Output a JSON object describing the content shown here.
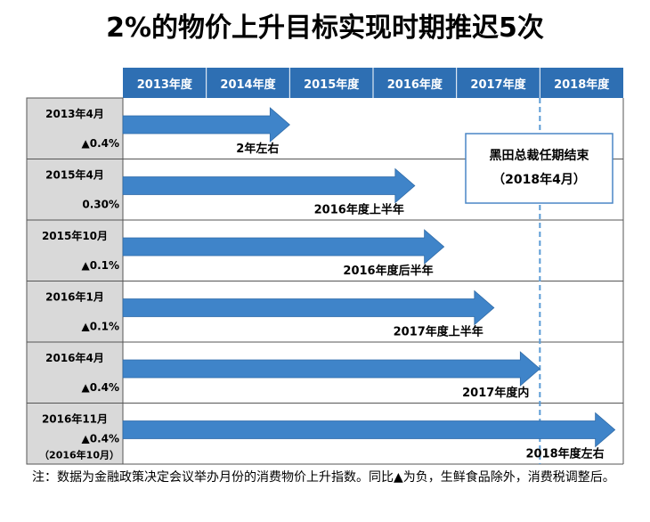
{
  "title": "2%的物价上升目标实现时期推迟5次",
  "chart_data": {
    "type": "timeline",
    "periods": [
      "2013年度",
      "2014年度",
      "2015年度",
      "2016年度",
      "2017年度",
      "2018年度"
    ],
    "rows": [
      {
        "date": "2013年4月",
        "value": "▲0.4%",
        "extra": "",
        "target": "2年左右",
        "target_period": 2015.0
      },
      {
        "date": "2015年4月",
        "value": "0.30%",
        "extra": "",
        "target": "2016年度上半年",
        "target_period": 2016.5
      },
      {
        "date": "2015年10月",
        "value": "▲0.1%",
        "extra": "",
        "target": "2016年度后半年",
        "target_period": 2016.85
      },
      {
        "date": "2016年1月",
        "value": "▲0.1%",
        "extra": "",
        "target": "2017年度上半年",
        "target_period": 2017.45
      },
      {
        "date": "2016年4月",
        "value": "▲0.4%",
        "extra": "",
        "target": "2017年度内",
        "target_period": 2018.0
      },
      {
        "date": "2016年11月",
        "value": "▲0.4%",
        "extra": "（2016年10月）",
        "target": "2018年度左右",
        "target_period": 2018.9
      }
    ],
    "marker": {
      "label_line1": "黑田总裁任期结束",
      "label_line2": "（2018年4月）",
      "period": 2018.0
    },
    "colors": {
      "header": "#2e6fb3",
      "arrow": "#3f84c9",
      "label_bg": "#d9d9d9",
      "marker_line": "#5b9bd5",
      "marker_border": "#4a86c5"
    }
  },
  "note": "注：数据为金融政策决定会议举办月份的消费物价上升指数。同比▲为负，生鲜食品除外，消费税调整后。"
}
